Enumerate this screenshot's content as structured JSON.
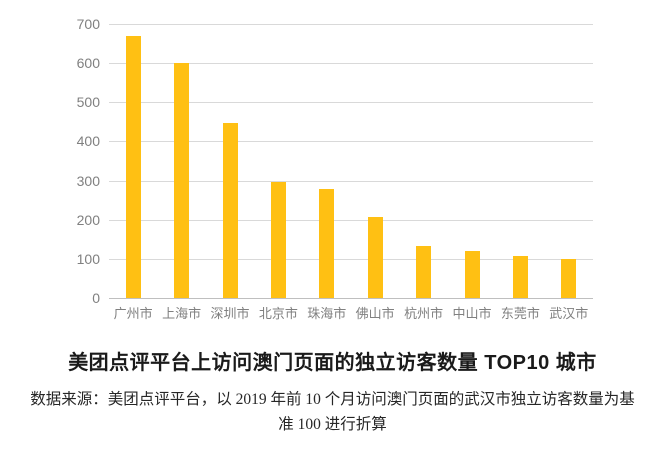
{
  "chart_data": {
    "type": "bar",
    "categories": [
      "广州市",
      "上海市",
      "深圳市",
      "北京市",
      "珠海市",
      "佛山市",
      "杭州市",
      "中山市",
      "东莞市",
      "武汉市"
    ],
    "values": [
      670,
      600,
      448,
      297,
      278,
      206,
      133,
      120,
      108,
      100
    ],
    "title": "美团点评平台上访问澳门页面的独立访客数量 TOP10 城市",
    "xlabel": "",
    "ylabel": "",
    "ylim": [
      0,
      700
    ],
    "ytick_step": 100,
    "ytick_labels": [
      "0",
      "100",
      "200",
      "300",
      "400",
      "500",
      "600",
      "700"
    ],
    "grid": true,
    "legend": "none",
    "bar_color": "#ffc013",
    "gridline_color": "#d9d9d9",
    "axis_label_color": "#808080"
  },
  "footnote": {
    "line1": "数据来源：美团点评平台，以 2019 年前 10 个月访问澳门页面的武汉市独立访客数量为基",
    "line2": "准 100 进行折算"
  }
}
